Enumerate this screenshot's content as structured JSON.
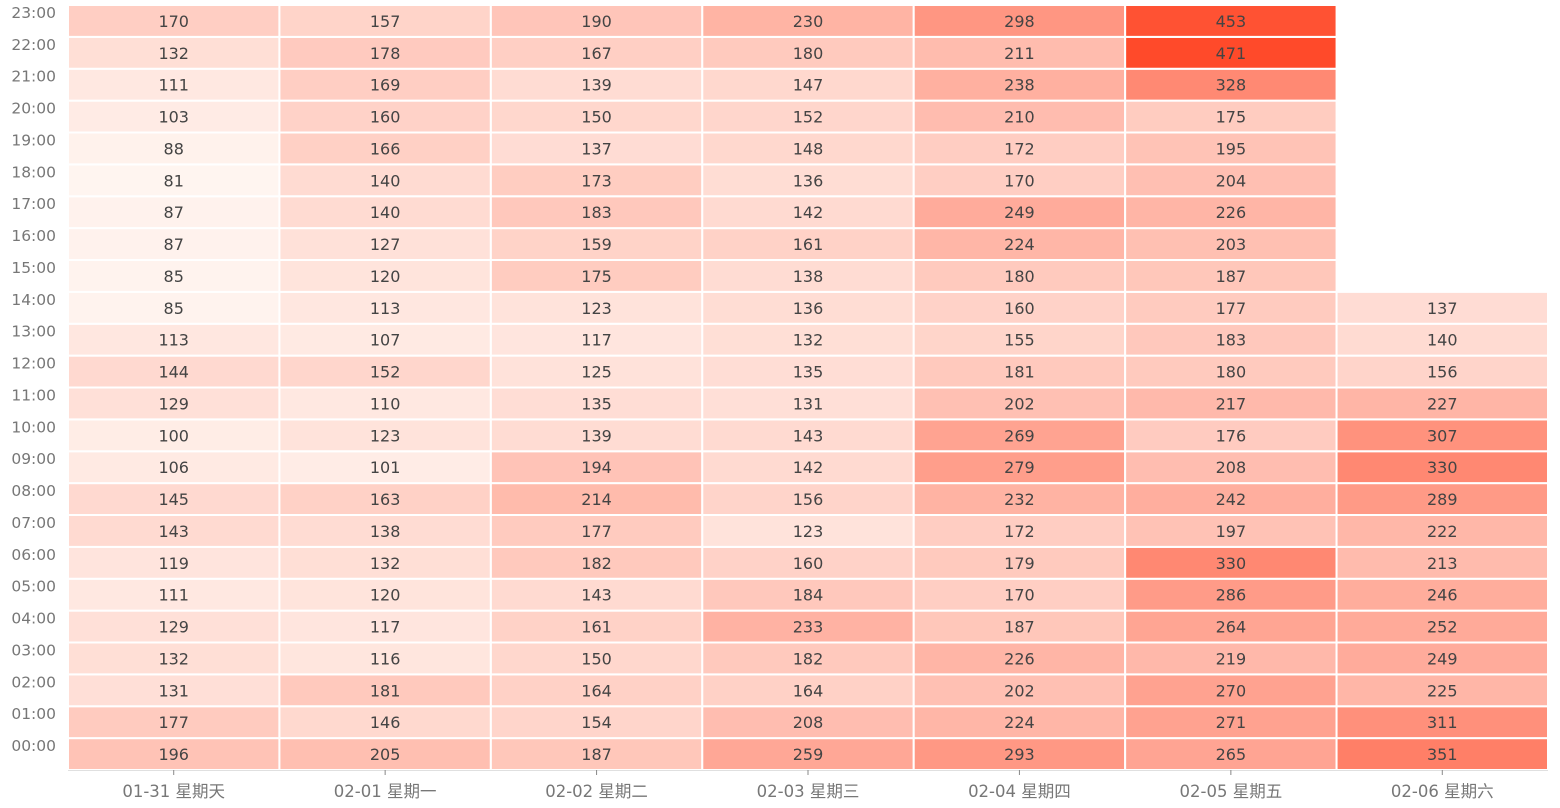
{
  "chart_data": {
    "type": "heatmap",
    "title": "",
    "xlabel": "",
    "ylabel": "",
    "x_categories": [
      "01-31 星期天",
      "02-01 星期一",
      "02-02 星期二",
      "02-03 星期三",
      "02-04 星期四",
      "02-05 星期五",
      "02-06 星期六"
    ],
    "y_categories": [
      "00:00",
      "01:00",
      "02:00",
      "03:00",
      "04:00",
      "05:00",
      "06:00",
      "07:00",
      "08:00",
      "09:00",
      "10:00",
      "11:00",
      "12:00",
      "13:00",
      "14:00",
      "15:00",
      "16:00",
      "17:00",
      "18:00",
      "19:00",
      "20:00",
      "21:00",
      "22:00",
      "23:00"
    ],
    "values": [
      [
        196,
        177,
        131,
        132,
        129,
        111,
        119,
        143,
        145,
        106,
        100,
        129,
        144,
        113,
        85,
        85,
        87,
        87,
        81,
        88,
        103,
        111,
        132,
        170
      ],
      [
        205,
        146,
        181,
        116,
        117,
        120,
        132,
        138,
        163,
        101,
        123,
        110,
        152,
        107,
        113,
        120,
        127,
        140,
        140,
        166,
        160,
        169,
        178,
        157
      ],
      [
        187,
        154,
        164,
        150,
        161,
        143,
        182,
        177,
        214,
        194,
        139,
        135,
        125,
        117,
        123,
        175,
        159,
        183,
        173,
        137,
        150,
        139,
        167,
        190
      ],
      [
        259,
        208,
        164,
        182,
        233,
        184,
        160,
        123,
        156,
        142,
        143,
        131,
        135,
        132,
        136,
        138,
        161,
        142,
        136,
        148,
        152,
        147,
        180,
        230
      ],
      [
        293,
        224,
        202,
        226,
        187,
        170,
        179,
        172,
        232,
        279,
        269,
        202,
        181,
        155,
        160,
        180,
        224,
        249,
        170,
        172,
        210,
        238,
        211,
        298
      ],
      [
        265,
        271,
        270,
        219,
        264,
        286,
        330,
        197,
        242,
        208,
        176,
        217,
        180,
        183,
        177,
        187,
        203,
        226,
        204,
        195,
        175,
        328,
        471,
        453
      ],
      [
        351,
        311,
        225,
        249,
        252,
        246,
        213,
        222,
        289,
        330,
        307,
        227,
        156,
        140,
        137,
        null,
        null,
        null,
        null,
        null,
        null,
        null,
        null,
        null
      ]
    ],
    "value_range": [
      81,
      471
    ],
    "color_scale": [
      "#fff5f0",
      "#ff4a2a"
    ],
    "legend": "none"
  }
}
